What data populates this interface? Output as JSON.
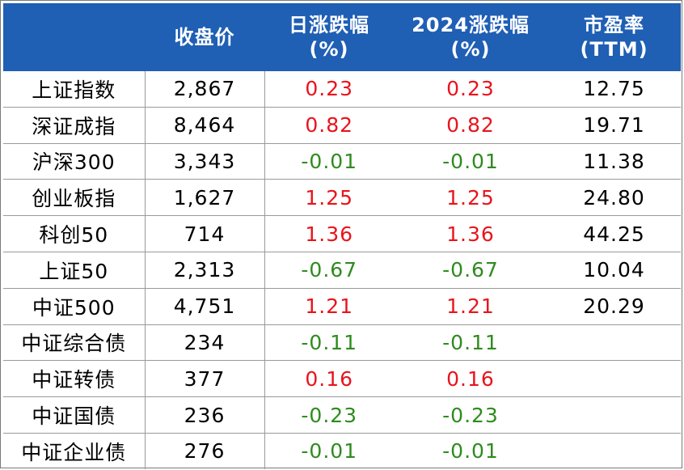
{
  "table": {
    "headers": [
      {
        "line1": "",
        "line2": ""
      },
      {
        "line1": "收盘价",
        "line2": ""
      },
      {
        "line1": "日涨跌幅",
        "line2": "(%)"
      },
      {
        "line1": "2024涨跌幅",
        "line2": "(%)"
      },
      {
        "line1": "市盈率",
        "line2": "(TTM)"
      }
    ],
    "rows": [
      {
        "name": "上证指数",
        "close": "2,867",
        "daily": "0.23",
        "ytd": "0.23",
        "pe": "12.75",
        "dir": "pos"
      },
      {
        "name": "深证成指",
        "close": "8,464",
        "daily": "0.82",
        "ytd": "0.82",
        "pe": "19.71",
        "dir": "pos"
      },
      {
        "name": "沪深300",
        "close": "3,343",
        "daily": "-0.01",
        "ytd": "-0.01",
        "pe": "11.38",
        "dir": "neg"
      },
      {
        "name": "创业板指",
        "close": "1,627",
        "daily": "1.25",
        "ytd": "1.25",
        "pe": "24.80",
        "dir": "pos"
      },
      {
        "name": "科创50",
        "close": "714",
        "daily": "1.36",
        "ytd": "1.36",
        "pe": "44.25",
        "dir": "pos"
      },
      {
        "name": "上证50",
        "close": "2,313",
        "daily": "-0.67",
        "ytd": "-0.67",
        "pe": "10.04",
        "dir": "neg"
      },
      {
        "name": "中证500",
        "close": "4,751",
        "daily": "1.21",
        "ytd": "1.21",
        "pe": "20.29",
        "dir": "pos"
      },
      {
        "name": "中证综合债",
        "close": "234",
        "daily": "-0.11",
        "ytd": "-0.11",
        "pe": "",
        "dir": "neg"
      },
      {
        "name": "中证转债",
        "close": "377",
        "daily": "0.16",
        "ytd": "0.16",
        "pe": "",
        "dir": "pos"
      },
      {
        "name": "中证国债",
        "close": "236",
        "daily": "-0.23",
        "ytd": "-0.23",
        "pe": "",
        "dir": "neg"
      },
      {
        "name": "中证企业债",
        "close": "276",
        "daily": "-0.01",
        "ytd": "-0.01",
        "pe": "",
        "dir": "neg"
      }
    ]
  },
  "colors": {
    "header_bg": "#1f5fb4",
    "positive": "#e8141c",
    "negative": "#2e8b1e"
  }
}
